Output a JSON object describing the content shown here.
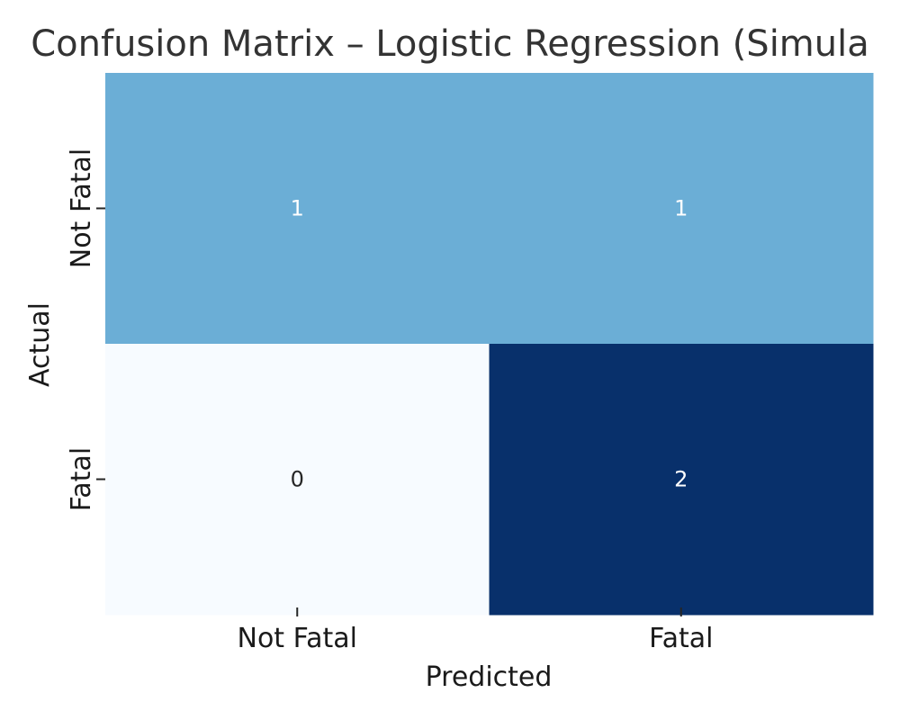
{
  "chart_data": {
    "type": "heatmap",
    "title": "Confusion Matrix – Logistic Regression (Simula",
    "xlabel": "Predicted",
    "ylabel": "Actual",
    "x_categories": [
      "Not Fatal",
      "Fatal"
    ],
    "y_categories": [
      "Not Fatal",
      "Fatal"
    ],
    "matrix": [
      [
        1,
        1
      ],
      [
        0,
        2
      ]
    ],
    "colormap": "Blues",
    "value_range": [
      0,
      2
    ],
    "colorbar": false,
    "annotations": true,
    "grid": false
  },
  "colors": {
    "low": "#f7fbff",
    "mid": "#6baed6",
    "high": "#08306b",
    "text_dark": "#262626",
    "text_light": "#ffffff",
    "title": "#333333"
  }
}
